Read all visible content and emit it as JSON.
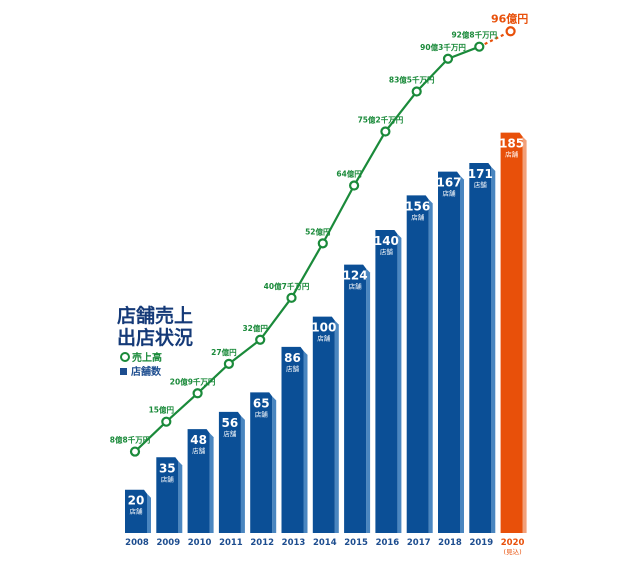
{
  "title_line1": "店舗売上",
  "title_line2": "出店状況",
  "chart_data": {
    "type": "bar+line",
    "categories": [
      "2008",
      "2009",
      "2010",
      "2011",
      "2012",
      "2013",
      "2014",
      "2015",
      "2016",
      "2017",
      "2018",
      "2019",
      "2020"
    ],
    "category_sublabels": {
      "2020": "(見込)"
    },
    "legend": [
      {
        "name": "売上高",
        "marker": "circle",
        "color": "#1a8a3a"
      },
      {
        "name": "店舗数",
        "marker": "square",
        "color": "#0b4f96"
      }
    ],
    "legend_placement": "left",
    "series": [
      {
        "name": "店舗数",
        "type": "bar",
        "values": [
          20,
          35,
          48,
          56,
          65,
          86,
          100,
          124,
          140,
          156,
          167,
          171,
          185
        ],
        "unit_label": "店舗",
        "color": "#0b4f96",
        "highlight_last_color": "#e8500a"
      },
      {
        "name": "売上高",
        "type": "line",
        "unit": "億円",
        "values": [
          8.8,
          15,
          20.9,
          27,
          32,
          40.7,
          52,
          64,
          75.2,
          83.5,
          90.3,
          92.8,
          96
        ],
        "labels": [
          "8億8千万円",
          "15億円",
          "20億9千万円",
          "27億円",
          "32億円",
          "40億7千万円",
          "52億円",
          "64億円",
          "75億2千万円",
          "83億5千万円",
          "90億3千万円",
          "92億8千万円",
          "96億円"
        ],
        "color": "#1a8a3a",
        "projected_color": "#e8500a"
      }
    ],
    "grid": false
  }
}
